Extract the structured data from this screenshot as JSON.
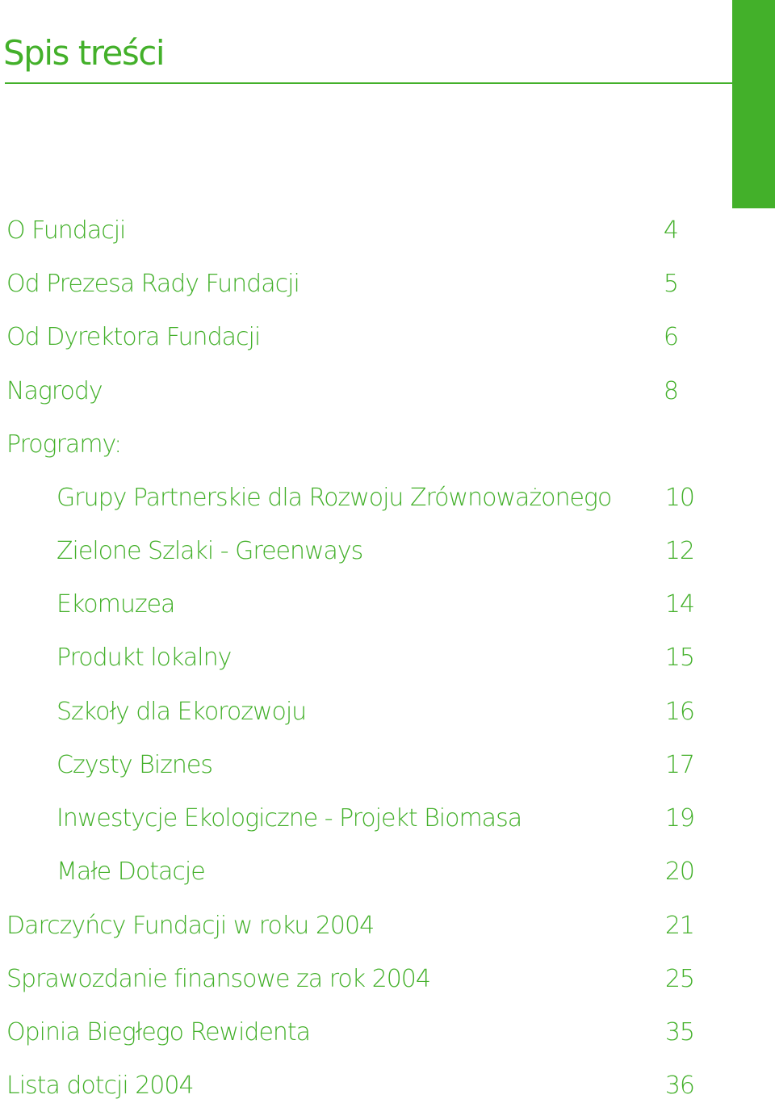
{
  "title": "Spis treści",
  "colors": {
    "accent": "#43b02a",
    "background": "#ffffff"
  },
  "toc": [
    {
      "label": "O Fundacji",
      "page": "4"
    },
    {
      "label": "Od Prezesa Rady Fundacji",
      "page": "5"
    },
    {
      "label": "Od Dyrektora Fundacji",
      "page": "6"
    },
    {
      "label": "Nagrody",
      "page": "8"
    },
    {
      "label": "Programy:",
      "page": ""
    },
    {
      "label": "Grupy Partnerskie dla Rozwoju Zrównoważonego",
      "page": "10"
    },
    {
      "label": "Zielone Szlaki - Greenways",
      "page": "12"
    },
    {
      "label": "Ekomuzea",
      "page": "14"
    },
    {
      "label": "Produkt lokalny",
      "page": "15"
    },
    {
      "label": "Szkoły dla Ekorozwoju",
      "page": "16"
    },
    {
      "label": "Czysty Biznes",
      "page": "17"
    },
    {
      "label": "Inwestycje Ekologiczne - Projekt Biomasa",
      "page": "19"
    },
    {
      "label": "Małe Dotacje",
      "page": "20"
    },
    {
      "label": "Darczyńcy Fundacji w roku 2004",
      "page": "21"
    },
    {
      "label": "Sprawozdanie finansowe za rok 2004",
      "page": "25"
    },
    {
      "label": "Opinia Biegłego Rewidenta",
      "page": "35"
    },
    {
      "label": "Lista dotcji 2004",
      "page": "36"
    }
  ]
}
